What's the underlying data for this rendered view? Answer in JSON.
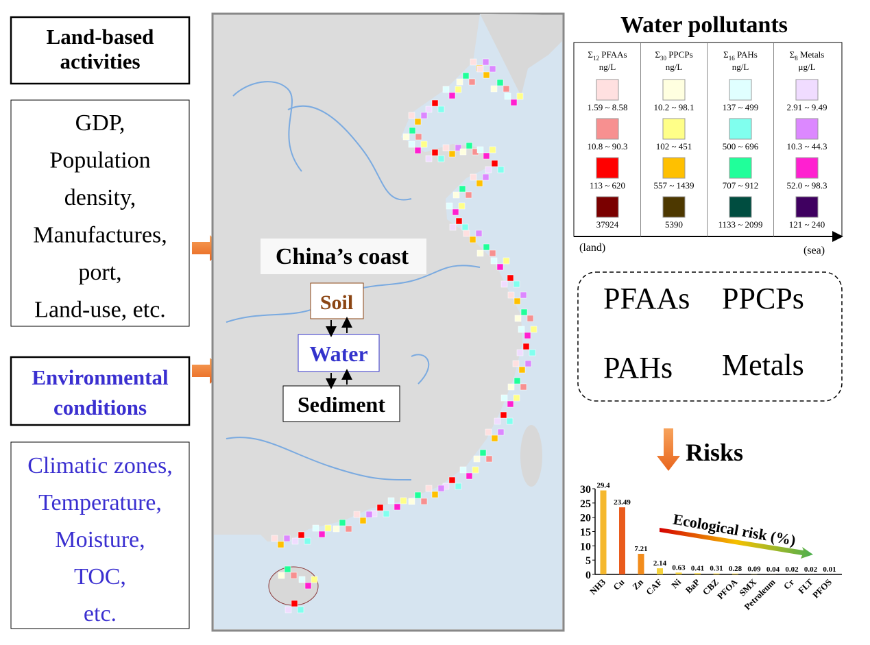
{
  "left": {
    "land_title": [
      "Land-based",
      "activities"
    ],
    "land_items": [
      "GDP,",
      "Population",
      "density,",
      "Manufactures,",
      "port,",
      "Land-use, etc."
    ],
    "env_title": [
      "Environmental",
      "conditions"
    ],
    "env_items": [
      "Climatic zones,",
      "Temperature,",
      "Moisture,",
      "TOC,",
      "etc."
    ]
  },
  "map": {
    "title": "China’s coast",
    "soil": "Soil",
    "water": "Water",
    "sediment": "Sediment"
  },
  "legend": {
    "title": "Water pollutants",
    "land": "(land)",
    "sea": "(sea)",
    "columns": [
      {
        "prefix": "Σ",
        "sub": "12",
        "name": " PFAAs",
        "unit": "ng/L",
        "ranges": [
          "1.59 ~ 8.58",
          "10.8 ~ 90.3",
          "113 ~ 620",
          "37924"
        ],
        "colors": [
          "#ffe0e0",
          "#f79090",
          "#ff0000",
          "#7a0000"
        ]
      },
      {
        "prefix": "Σ",
        "sub": "30",
        "name": " PPCPs",
        "unit": "ng/L",
        "ranges": [
          "10.2 ~ 98.1",
          "102 ~ 451",
          "557 ~ 1439",
          "5390"
        ],
        "colors": [
          "#ffffe0",
          "#ffff88",
          "#ffc000",
          "#4d3800"
        ]
      },
      {
        "prefix": "Σ",
        "sub": "16",
        "name": " PAHs",
        "unit": "ng/L",
        "ranges": [
          "137 ~ 499",
          "500 ~ 696",
          "707 ~ 912",
          "1133 ~ 2099"
        ],
        "colors": [
          "#e0ffff",
          "#80ffee",
          "#20ff9a",
          "#004d40"
        ]
      },
      {
        "prefix": "Σ",
        "sub": "8",
        "name": " Metals",
        "unit": "μg/L",
        "ranges": [
          "2.91 ~ 9.49",
          "10.3 ~ 44.3",
          "52.0 ~ 98.3",
          "121 ~ 240"
        ],
        "colors": [
          "#f0dcff",
          "#dc88ff",
          "#ff20d0",
          "#3f0060"
        ]
      }
    ]
  },
  "groups": [
    "PFAAs",
    "PPCPs",
    "PAHs",
    "Metals"
  ],
  "risks": {
    "title": "Risks",
    "chart": {
      "type": "bar",
      "label": "Ecological risk (%)",
      "categories": [
        "NH3",
        "Cu",
        "Zn",
        "CAF",
        "Ni",
        "BaP",
        "CBZ",
        "PFOA",
        "SMX",
        "Petroleum",
        "Cr",
        "FLT",
        "PFOS"
      ],
      "values": [
        29.4,
        23.49,
        7.21,
        2.14,
        0.63,
        0.41,
        0.31,
        0.28,
        0.09,
        0.04,
        0.02,
        0.02,
        0.01
      ],
      "colors": [
        "#f5b82e",
        "#ea5b1c",
        "#f28c1c",
        "#f5d23a",
        "#f5d23a",
        "#f5d23a",
        "#f5d23a",
        "#f5d23a",
        "#f5d23a",
        "#f5d23a",
        "#f5d23a",
        "#f5d23a",
        "#f5d23a"
      ],
      "ylim": [
        0,
        30
      ],
      "yticks": [
        0,
        5,
        10,
        15,
        20,
        25,
        30
      ]
    }
  }
}
